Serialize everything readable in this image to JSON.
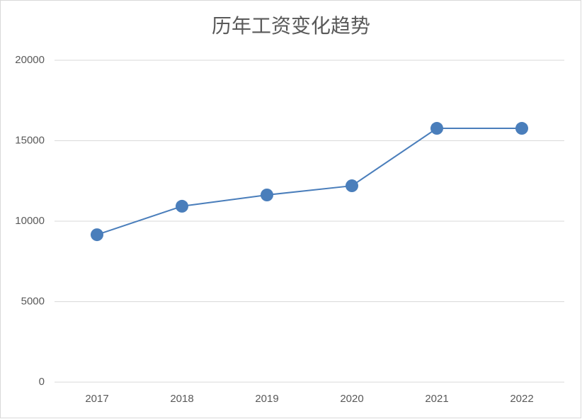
{
  "chart_data": {
    "type": "line",
    "title": "历年工资变化趋势",
    "categories": [
      "2017",
      "2018",
      "2019",
      "2020",
      "2021",
      "2022"
    ],
    "values": [
      9160,
      10930,
      11630,
      12200,
      15770,
      15770
    ],
    "color": "#4a7ebb",
    "ylim": [
      0,
      20000
    ],
    "yticks": [
      0,
      5000,
      10000,
      15000,
      20000
    ],
    "grid": true
  }
}
